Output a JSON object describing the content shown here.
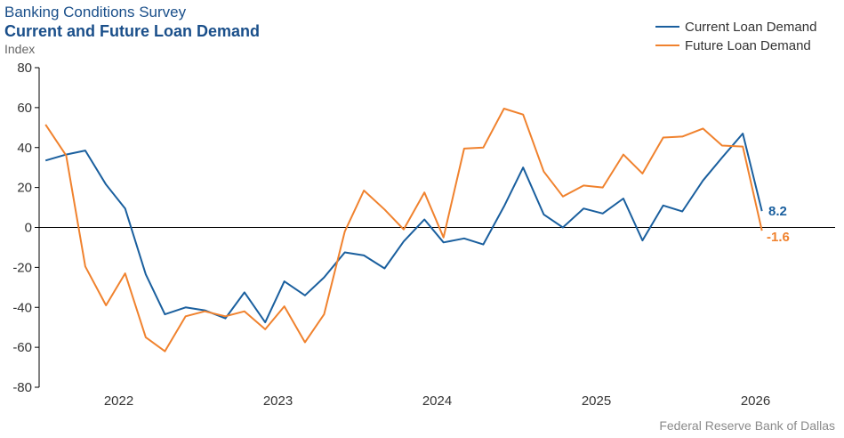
{
  "header": {
    "title": "Banking Conditions Survey",
    "subtitle": "Current and Future Loan Demand",
    "ylabel": "Index"
  },
  "source": "Federal Reserve Bank of Dallas",
  "colors": {
    "current": "#1a5f9e",
    "future": "#f0822e",
    "axis": "#000000"
  },
  "chart_data": {
    "type": "line",
    "title": "Current and Future Loan Demand",
    "ylabel": "Index",
    "ylim": [
      -80,
      80
    ],
    "yticks": [
      80,
      60,
      40,
      20,
      0,
      -20,
      -40,
      -60,
      -80
    ],
    "xlim": [
      2021.5,
      2026.5
    ],
    "xticks": [
      2022,
      2023,
      2024,
      2025,
      2026
    ],
    "grid": false,
    "legend_position": "top-right",
    "series": [
      {
        "name": "Current Loan Demand",
        "x": [
          2021.54,
          2021.67,
          2021.79,
          2021.92,
          2022.04,
          2022.17,
          2022.29,
          2022.42,
          2022.54,
          2022.67,
          2022.79,
          2022.92,
          2023.04,
          2023.17,
          2023.29,
          2023.42,
          2023.54,
          2023.67,
          2023.79,
          2023.92,
          2024.04,
          2024.17,
          2024.29,
          2024.42,
          2024.54,
          2024.67,
          2024.79,
          2024.92,
          2025.04,
          2025.17,
          2025.29,
          2025.42,
          2025.54,
          2025.67,
          2025.79,
          2025.92,
          2026.04
        ],
        "values": [
          33.5,
          36.5,
          38.5,
          21.5,
          9.5,
          -23.5,
          -43.5,
          -40.0,
          -41.5,
          -45.5,
          -32.5,
          -47.5,
          -27.0,
          -34.0,
          -25.0,
          -12.5,
          -14.0,
          -20.5,
          -7.0,
          4.0,
          -7.5,
          -5.5,
          -8.5,
          10.5,
          30.0,
          6.5,
          0.0,
          9.5,
          7.0,
          14.5,
          -6.5,
          11.0,
          8.0,
          23.5,
          35.0,
          47.0,
          8.2
        ]
      },
      {
        "name": "Future Loan Demand",
        "x": [
          2021.54,
          2021.67,
          2021.79,
          2021.92,
          2022.04,
          2022.17,
          2022.29,
          2022.42,
          2022.54,
          2022.67,
          2022.79,
          2022.92,
          2023.04,
          2023.17,
          2023.29,
          2023.42,
          2023.54,
          2023.67,
          2023.79,
          2023.92,
          2024.04,
          2024.17,
          2024.29,
          2024.42,
          2024.54,
          2024.67,
          2024.79,
          2024.92,
          2025.04,
          2025.17,
          2025.29,
          2025.42,
          2025.54,
          2025.67,
          2025.79,
          2025.92,
          2026.04
        ],
        "values": [
          51.5,
          36.0,
          -19.5,
          -39.0,
          -23.0,
          -55.0,
          -62.0,
          -44.5,
          -42.0,
          -44.5,
          -42.0,
          -51.0,
          -39.5,
          -57.5,
          -43.5,
          -2.0,
          18.5,
          9.0,
          -1.0,
          17.5,
          -5.0,
          39.5,
          40.0,
          59.5,
          56.5,
          28.0,
          15.5,
          21.0,
          20.0,
          36.5,
          27.0,
          45.0,
          45.5,
          49.5,
          41.0,
          40.5,
          -1.6
        ]
      }
    ],
    "end_labels": [
      "8.2",
      "-1.6"
    ]
  }
}
